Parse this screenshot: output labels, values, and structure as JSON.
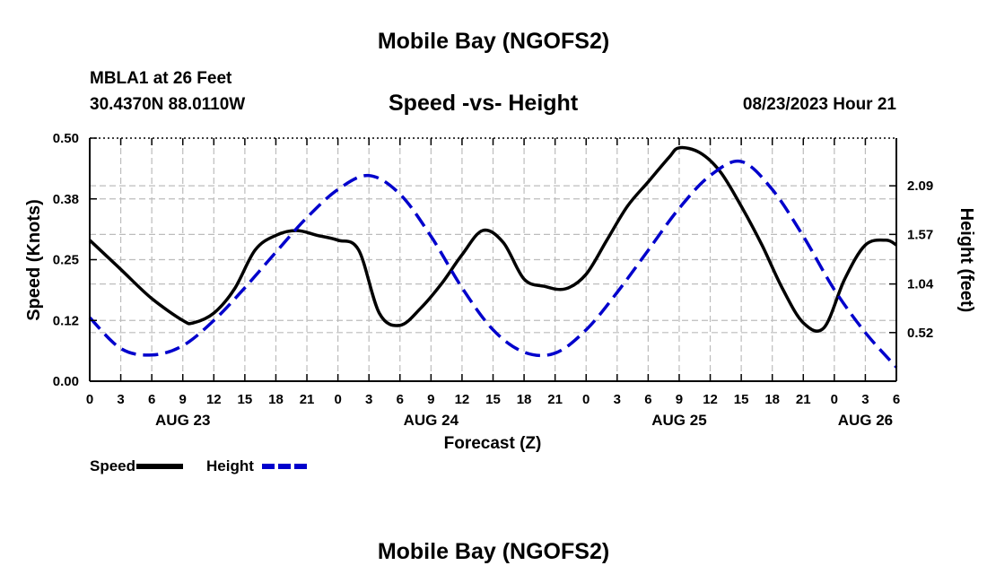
{
  "page": {
    "title": "Mobile Bay (NGOFS2)",
    "station_line": "MBLA1 at 26 Feet",
    "coords_line": "30.4370N  88.0110W",
    "chart_title": "Speed -vs- Height",
    "timestamp": "08/23/2023 Hour 21",
    "bottom_title": "Mobile Bay (NGOFS2)"
  },
  "chart_data": {
    "type": "line",
    "title": "Speed -vs- Height",
    "xlabel": "Forecast (Z)",
    "ylabel": "Speed (Knots)",
    "y2label": "Height (feet)",
    "x_ticks": [
      "0",
      "3",
      "6",
      "9",
      "12",
      "15",
      "18",
      "21",
      "0",
      "3",
      "6",
      "9",
      "12",
      "15",
      "18",
      "21",
      "0",
      "3",
      "6",
      "9",
      "12",
      "15",
      "18",
      "21",
      "0",
      "3",
      "6"
    ],
    "date_labels": [
      {
        "label": "AUG 23",
        "hour": 9
      },
      {
        "label": "AUG 24",
        "hour": 33
      },
      {
        "label": "AUG 25",
        "hour": 57
      },
      {
        "label": "AUG 26",
        "hour": 75
      }
    ],
    "xlim": [
      0,
      78
    ],
    "ylim": [
      0,
      0.5
    ],
    "y_ticks": [
      "0.00",
      "0.12",
      "0.25",
      "0.38",
      "0.50"
    ],
    "y2lim": [
      0,
      2.6
    ],
    "y2_ticks": [
      "0.52",
      "1.04",
      "1.57",
      "2.09"
    ],
    "grid": true,
    "legend": [
      {
        "name": "Speed",
        "color": "#000000",
        "style": "solid"
      },
      {
        "name": "Height",
        "color": "#0000cc",
        "style": "dashed"
      }
    ],
    "series": [
      {
        "name": "Speed",
        "axis": "left",
        "color": "#000000",
        "x": [
          0,
          3,
          6,
          9,
          10,
          12,
          14,
          16,
          18,
          20,
          22,
          24,
          26,
          28,
          30,
          32,
          34,
          36,
          38,
          40,
          42,
          44,
          46,
          48,
          50,
          52,
          54,
          56,
          57,
          59,
          61,
          63,
          65,
          67,
          69,
          71,
          73,
          75,
          77,
          78
        ],
        "y": [
          0.29,
          0.23,
          0.17,
          0.125,
          0.12,
          0.14,
          0.19,
          0.27,
          0.3,
          0.31,
          0.3,
          0.29,
          0.27,
          0.14,
          0.115,
          0.15,
          0.2,
          0.26,
          0.31,
          0.285,
          0.21,
          0.195,
          0.19,
          0.22,
          0.29,
          0.36,
          0.41,
          0.46,
          0.48,
          0.47,
          0.43,
          0.36,
          0.28,
          0.19,
          0.12,
          0.11,
          0.21,
          0.28,
          0.29,
          0.28
        ]
      },
      {
        "name": "Height",
        "axis": "right",
        "color": "#0000cc",
        "x": [
          0,
          3,
          6,
          9,
          12,
          15,
          18,
          21,
          24,
          27,
          30,
          33,
          36,
          39,
          42,
          45,
          48,
          51,
          54,
          57,
          60,
          63,
          66,
          69,
          72,
          75,
          78
        ],
        "y": [
          0.68,
          0.35,
          0.28,
          0.38,
          0.65,
          1.0,
          1.38,
          1.75,
          2.05,
          2.2,
          2.0,
          1.55,
          1.0,
          0.55,
          0.31,
          0.3,
          0.55,
          0.95,
          1.4,
          1.85,
          2.2,
          2.35,
          2.05,
          1.55,
          0.98,
          0.52,
          0.15
        ]
      }
    ]
  }
}
